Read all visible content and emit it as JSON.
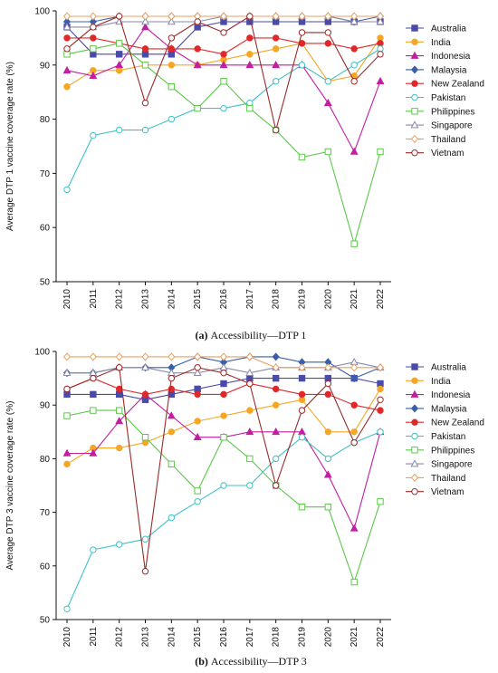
{
  "colors": {
    "Australia": "#4a4aa8",
    "India": "#f5a623",
    "Indonesia": "#c21ea0",
    "Malaysia": "#3a5fa8",
    "New Zealand": "#e02828",
    "Pakistan": "#40c0c8",
    "Philippines": "#5cc84a",
    "Singapore": "#8a8aa8",
    "Thailand": "#e8a060",
    "Vietnam": "#9a2a2a"
  },
  "markers": {
    "Australia": "square",
    "India": "circle",
    "Indonesia": "triangle",
    "Malaysia": "diamond",
    "New Zealand": "circle",
    "Pakistan": "circle-open",
    "Philippines": "square-open",
    "Singapore": "triangle-open",
    "Thailand": "diamond-open",
    "Vietnam": "circle-open"
  },
  "chart_data": [
    {
      "type": "line",
      "caption_label": "(a)",
      "caption_text": "Accessibility—DTP 1",
      "ylabel": "Average DTP 1 vaccine coverage rate (%)",
      "xlabel": "",
      "x": [
        "2010",
        "2011",
        "2012",
        "2013",
        "2014",
        "2015",
        "2016",
        "2017",
        "2018",
        "2019",
        "2020",
        "2021",
        "2022"
      ],
      "ylim": [
        50,
        100
      ],
      "yticks": [
        50,
        60,
        70,
        80,
        90,
        100
      ],
      "grid": false,
      "legend": "right",
      "series": [
        {
          "name": "Australia",
          "values": [
            97,
            92,
            92,
            92,
            92,
            97,
            98,
            98,
            98,
            98,
            98,
            98,
            98
          ]
        },
        {
          "name": "India",
          "values": [
            86,
            89,
            89,
            90,
            90,
            90,
            91,
            92,
            93,
            94,
            87,
            88,
            95
          ]
        },
        {
          "name": "Indonesia",
          "values": [
            89,
            88,
            90,
            97,
            93,
            90,
            90,
            90,
            90,
            90,
            83,
            74,
            87
          ]
        },
        {
          "name": "Malaysia",
          "values": [
            98,
            98,
            99,
            99,
            99,
            99,
            99,
            99,
            99,
            99,
            99,
            98,
            99
          ]
        },
        {
          "name": "New Zealand",
          "values": [
            95,
            95,
            94,
            93,
            93,
            93,
            92,
            95,
            95,
            94,
            94,
            93,
            94
          ]
        },
        {
          "name": "Pakistan",
          "values": [
            67,
            77,
            78,
            78,
            80,
            82,
            82,
            83,
            87,
            90,
            87,
            90,
            93
          ]
        },
        {
          "name": "Philippines",
          "values": [
            92,
            93,
            94,
            90,
            86,
            82,
            87,
            82,
            78,
            73,
            74,
            57,
            74
          ]
        },
        {
          "name": "Singapore",
          "values": [
            97,
            97,
            98,
            98,
            98,
            98,
            99,
            99,
            99,
            99,
            99,
            98,
            98
          ]
        },
        {
          "name": "Thailand",
          "values": [
            99,
            99,
            99,
            99,
            99,
            99,
            99,
            99,
            99,
            99,
            99,
            99,
            99
          ]
        },
        {
          "name": "Vietnam",
          "values": [
            93,
            97,
            99,
            83,
            95,
            98,
            96,
            99,
            78,
            96,
            96,
            87,
            92
          ]
        }
      ]
    },
    {
      "type": "line",
      "caption_label": "(b)",
      "caption_text": "Accessibility—DTP 3",
      "ylabel": "Average DTP 3 vaccine coverage rate (%)",
      "xlabel": "",
      "x": [
        "2010",
        "2011",
        "2012",
        "2013",
        "2014",
        "2015",
        "2016",
        "2017",
        "2018",
        "2019",
        "2020",
        "2021",
        "2022"
      ],
      "ylim": [
        50,
        100
      ],
      "yticks": [
        50,
        60,
        70,
        80,
        90,
        100
      ],
      "grid": false,
      "legend": "right",
      "series": [
        {
          "name": "Australia",
          "values": [
            92,
            92,
            92,
            91,
            92,
            93,
            94,
            95,
            95,
            95,
            95,
            95,
            94
          ]
        },
        {
          "name": "India",
          "values": [
            79,
            82,
            82,
            83,
            85,
            87,
            88,
            89,
            90,
            91,
            85,
            85,
            93
          ]
        },
        {
          "name": "Indonesia",
          "values": [
            81,
            81,
            87,
            92,
            88,
            84,
            84,
            85,
            85,
            85,
            77,
            67,
            85
          ]
        },
        {
          "name": "Malaysia",
          "values": [
            96,
            96,
            97,
            97,
            97,
            99,
            98,
            99,
            99,
            98,
            98,
            95,
            97
          ]
        },
        {
          "name": "New Zealand",
          "values": [
            93,
            95,
            93,
            92,
            93,
            92,
            92,
            94,
            93,
            92,
            92,
            90,
            89
          ]
        },
        {
          "name": "Pakistan",
          "values": [
            52,
            63,
            64,
            65,
            69,
            72,
            75,
            75,
            80,
            84,
            80,
            83,
            85
          ]
        },
        {
          "name": "Philippines",
          "values": [
            88,
            89,
            89,
            84,
            79,
            74,
            84,
            80,
            75,
            71,
            71,
            57,
            72
          ]
        },
        {
          "name": "Singapore",
          "values": [
            96,
            96,
            97,
            97,
            96,
            96,
            97,
            96,
            97,
            97,
            97,
            98,
            97
          ]
        },
        {
          "name": "Thailand",
          "values": [
            99,
            99,
            99,
            99,
            99,
            99,
            99,
            99,
            97,
            97,
            97,
            97,
            97
          ]
        },
        {
          "name": "Vietnam",
          "values": [
            93,
            95,
            97,
            59,
            95,
            97,
            96,
            94,
            75,
            89,
            94,
            83,
            91
          ]
        }
      ]
    }
  ]
}
